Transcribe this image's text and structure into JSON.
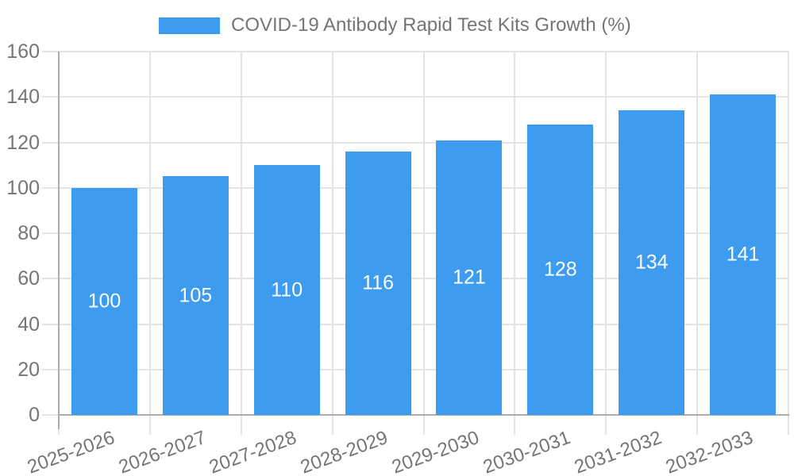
{
  "legend": {
    "label": "COVID-19 Antibody Rapid Test Kits Growth (%)"
  },
  "chart_data": {
    "type": "bar",
    "title": "COVID-19 Antibody Rapid Test Kits Growth (%)",
    "series_name": "COVID-19 Antibody Rapid Test Kits Growth (%)",
    "categories": [
      "2025-2026",
      "2026-2027",
      "2027-2028",
      "2028-2029",
      "2029-2030",
      "2030-2031",
      "2031-2032",
      "2032-2033"
    ],
    "values": [
      100,
      105,
      110,
      116,
      121,
      128,
      134,
      141
    ],
    "value_labels": [
      "100",
      "105",
      "110",
      "116",
      "121",
      "128",
      "134",
      "141"
    ],
    "xlabel": "",
    "ylabel": "",
    "ylim": [
      0,
      160
    ],
    "ytick_step": 20,
    "ytick_labels": [
      "0",
      "20",
      "40",
      "60",
      "80",
      "100",
      "120",
      "140",
      "160"
    ],
    "grid": true,
    "legend_position": "top",
    "x_label_rotation": -20,
    "colors": {
      "bar": "#3D9BF0",
      "value_label": "#FFFFFF",
      "axis_text": "#757575",
      "grid_line": "#E4E4E4",
      "axis_line": "#ACACAC",
      "background": "#FFFFFF"
    }
  }
}
